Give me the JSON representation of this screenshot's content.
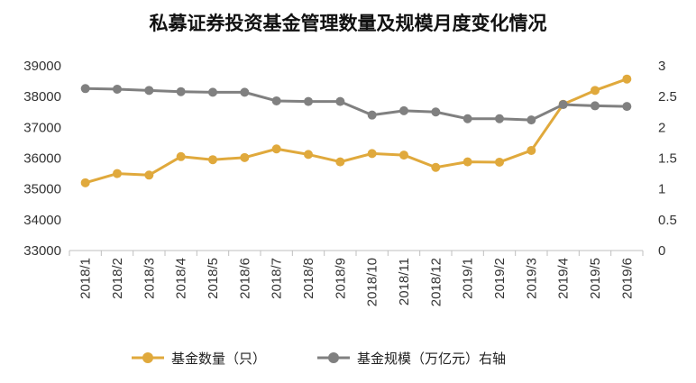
{
  "chart_data": {
    "type": "line",
    "title": "私募证券投资基金管理数量及规模月度变化情况",
    "categories": [
      "2018/1",
      "2018/2",
      "2018/3",
      "2018/4",
      "2018/5",
      "2018/6",
      "2018/7",
      "2018/8",
      "2018/9",
      "2018/10",
      "2018/11",
      "2018/12",
      "2019/1",
      "2019/2",
      "2019/3",
      "2019/4",
      "2019/5",
      "2019/6"
    ],
    "series": [
      {
        "name": "基金数量（只）",
        "axis": "left",
        "color": "#E0A93C",
        "values": [
          35200,
          35500,
          35450,
          36050,
          35950,
          36020,
          36300,
          36120,
          35880,
          36150,
          36100,
          35700,
          35880,
          35870,
          36250,
          37750,
          38200,
          38570
        ]
      },
      {
        "name": "基金规模（万亿元）右轴",
        "axis": "right",
        "color": "#808080",
        "values": [
          2.63,
          2.62,
          2.6,
          2.58,
          2.57,
          2.57,
          2.43,
          2.42,
          2.42,
          2.2,
          2.27,
          2.25,
          2.14,
          2.14,
          2.12,
          2.37,
          2.35,
          2.34
        ]
      }
    ],
    "yleft": {
      "min": 33000,
      "max": 39000,
      "ticks": [
        33000,
        34000,
        35000,
        36000,
        37000,
        38000,
        39000
      ]
    },
    "yright": {
      "min": 0,
      "max": 3,
      "ticks": [
        "0",
        "0.5",
        "1",
        "1.5",
        "2",
        "2.5",
        "3"
      ]
    },
    "grid": false,
    "legend": "bottom"
  }
}
